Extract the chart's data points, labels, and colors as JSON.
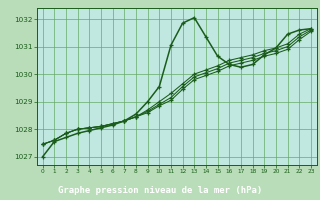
{
  "background_color": "#b8ddb8",
  "plot_bg_color": "#c0e8e0",
  "grid_color": "#66aa66",
  "line_color": "#1a5c1a",
  "footer_bg": "#2a6e2a",
  "footer_text_color": "#ffffff",
  "title": "Graphe pression niveau de la mer (hPa)",
  "title_fontsize": 6.5,
  "ylim": [
    1026.7,
    1032.4
  ],
  "xlim": [
    -0.5,
    23.5
  ],
  "yticks": [
    1027,
    1028,
    1029,
    1030,
    1031,
    1032
  ],
  "xticks": [
    0,
    1,
    2,
    3,
    4,
    5,
    6,
    7,
    8,
    9,
    10,
    11,
    12,
    13,
    14,
    15,
    16,
    17,
    18,
    19,
    20,
    21,
    22,
    23
  ],
  "series": [
    [
      1027.0,
      1027.55,
      1027.7,
      1027.85,
      1027.95,
      1028.05,
      1028.15,
      1028.3,
      1028.55,
      1029.0,
      1029.55,
      1031.05,
      1031.85,
      1032.05,
      1031.35,
      1030.65,
      1030.35,
      1030.25,
      1030.35,
      1030.7,
      1030.95,
      1031.45,
      1031.6,
      1031.65
    ],
    [
      1027.45,
      1027.6,
      1027.85,
      1028.0,
      1028.05,
      1028.1,
      1028.2,
      1028.3,
      1028.45,
      1028.7,
      1029.0,
      1029.3,
      1029.65,
      1030.0,
      1030.15,
      1030.3,
      1030.5,
      1030.6,
      1030.7,
      1030.85,
      1030.95,
      1031.1,
      1031.45,
      1031.65
    ],
    [
      1027.45,
      1027.6,
      1027.85,
      1028.0,
      1028.05,
      1028.1,
      1028.2,
      1028.3,
      1028.45,
      1028.65,
      1028.9,
      1029.15,
      1029.55,
      1029.9,
      1030.05,
      1030.2,
      1030.4,
      1030.5,
      1030.6,
      1030.75,
      1030.85,
      1031.0,
      1031.35,
      1031.6
    ],
    [
      1027.45,
      1027.6,
      1027.85,
      1028.0,
      1028.05,
      1028.1,
      1028.2,
      1028.3,
      1028.45,
      1028.6,
      1028.85,
      1029.05,
      1029.45,
      1029.8,
      1029.95,
      1030.1,
      1030.3,
      1030.4,
      1030.5,
      1030.65,
      1030.75,
      1030.9,
      1031.25,
      1031.55
    ]
  ]
}
